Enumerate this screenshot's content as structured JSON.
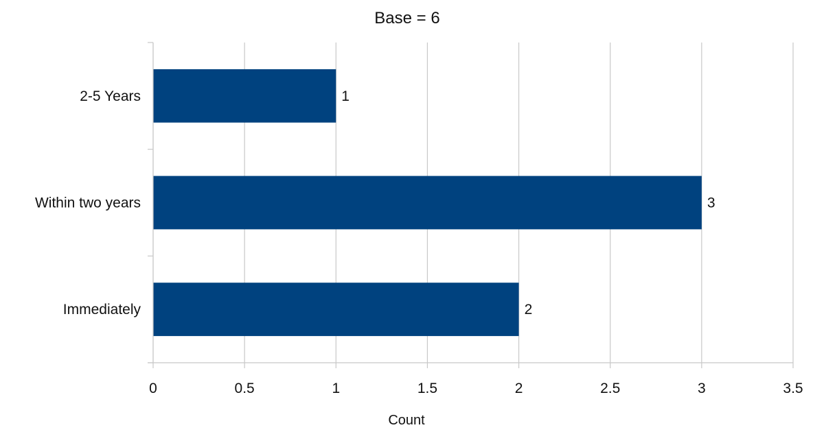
{
  "chart_data": {
    "type": "bar",
    "orientation": "horizontal",
    "title": "Base = 6",
    "xlabel": "Count",
    "ylabel": "",
    "categories": [
      "2-5 Years",
      "Within two years",
      "Immediately"
    ],
    "values": [
      1,
      3,
      2
    ],
    "xlim": [
      0,
      3.5
    ],
    "x_ticks": [
      0,
      0.5,
      1,
      1.5,
      2,
      2.5,
      3,
      3.5
    ],
    "x_tick_labels": [
      "0",
      "0.5",
      "1",
      "1.5",
      "2",
      "2.5",
      "3",
      "3.5"
    ],
    "data_labels": [
      "1",
      "3",
      "2"
    ],
    "bar_color": "#00427f",
    "grid": {
      "vertical": true,
      "horizontal": false
    },
    "legend": "none"
  }
}
